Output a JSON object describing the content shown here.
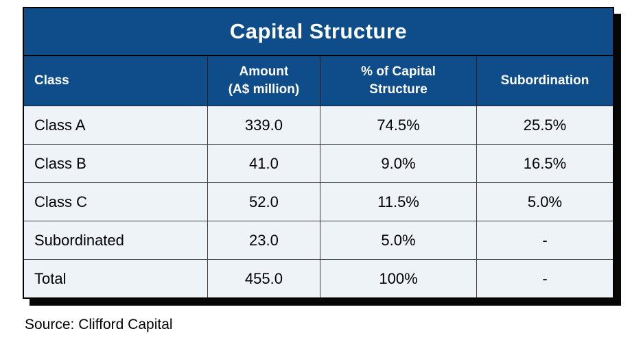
{
  "title": "Capital Structure",
  "source": "Source: Clifford Capital",
  "colors": {
    "header_bg": "#0e4c8a",
    "body_bg": "#edf3f7",
    "outer_border": "#000000",
    "grid_line": "#3c3c3c",
    "shadow": "#060606",
    "header_text": "#ffffff",
    "body_text": "#000000"
  },
  "chart_data": {
    "type": "table",
    "title": "Capital Structure",
    "columns": [
      "Class",
      "Amount (A$ million)",
      "% of Capital Structure",
      "Subordination"
    ],
    "rows": [
      [
        "Class A",
        "339.0",
        "74.5%",
        "25.5%"
      ],
      [
        "Class B",
        "41.0",
        "9.0%",
        "16.5%"
      ],
      [
        "Class C",
        "52.0",
        "11.5%",
        "5.0%"
      ],
      [
        "Subordinated",
        "23.0",
        "5.0%",
        "-"
      ],
      [
        "Total",
        "455.0",
        "100%",
        "-"
      ]
    ],
    "source": "Source: Clifford Capital"
  },
  "table": {
    "headers": [
      {
        "label": "Class"
      },
      {
        "label": "Amount\n(A$ million)"
      },
      {
        "label": "% of Capital\nStructure"
      },
      {
        "label": "Subordination"
      }
    ],
    "rows": [
      {
        "cells": [
          "Class A",
          "339.0",
          "74.5%",
          "25.5%"
        ]
      },
      {
        "cells": [
          "Class B",
          "41.0",
          "9.0%",
          "16.5%"
        ]
      },
      {
        "cells": [
          "Class C",
          "52.0",
          "11.5%",
          "5.0%"
        ]
      },
      {
        "cells": [
          "Subordinated",
          "23.0",
          "5.0%",
          "-"
        ]
      },
      {
        "cells": [
          "Total",
          "455.0",
          "100%",
          "-"
        ]
      }
    ]
  }
}
